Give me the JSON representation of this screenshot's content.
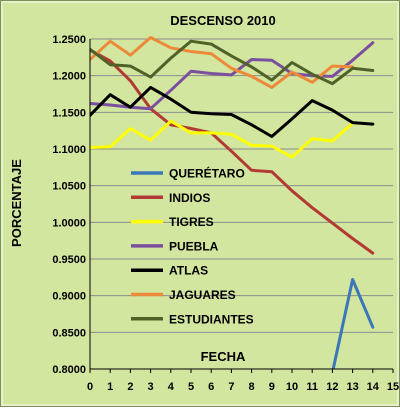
{
  "chart_data": {
    "type": "line",
    "title": "DESCENSO 2010",
    "xlabel": "FECHA",
    "ylabel": "PORCENTAJE",
    "xlim": [
      0,
      15
    ],
    "ylim": [
      0.8,
      1.25
    ],
    "x_ticks": [
      "0",
      "1",
      "2",
      "3",
      "4",
      "5",
      "6",
      "7",
      "8",
      "9",
      "10",
      "11",
      "12",
      "13",
      "14",
      "15"
    ],
    "y_ticks": [
      "0.8000",
      "0.8500",
      "0.9000",
      "0.9500",
      "1.0000",
      "1.0500",
      "1.1000",
      "1.1500",
      "1.2000",
      "1.2500"
    ],
    "grid": true,
    "legend_position": "center-left",
    "background": "#d2e6a0",
    "series": [
      {
        "name": "QUERÉTARO",
        "color": "#3b77b8",
        "x": [
          12,
          13,
          14
        ],
        "values": [
          0.795,
          0.922,
          0.857
        ]
      },
      {
        "name": "INDIOS",
        "color": "#b23a34",
        "x": [
          0,
          1,
          2,
          3,
          4,
          5,
          6,
          7,
          8,
          9,
          10,
          11,
          12,
          13,
          14
        ],
        "values": [
          1.235,
          1.22,
          1.193,
          1.155,
          1.133,
          1.128,
          1.122,
          1.097,
          1.071,
          1.069,
          1.043,
          1.02,
          0.999,
          0.978,
          0.958
        ]
      },
      {
        "name": "TIGRES",
        "color": "#ffff00",
        "x": [
          0,
          1,
          2,
          3,
          4,
          5,
          6,
          7,
          8,
          9,
          10,
          11,
          12,
          13
        ],
        "values": [
          1.102,
          1.103,
          1.128,
          1.112,
          1.138,
          1.122,
          1.122,
          1.12,
          1.105,
          1.104,
          1.089,
          1.114,
          1.111,
          1.135
        ]
      },
      {
        "name": "PUEBLA",
        "color": "#7b4f9e",
        "x": [
          0,
          1,
          2,
          3,
          4,
          5,
          6,
          7,
          8,
          9,
          10,
          11,
          12,
          13,
          14
        ],
        "values": [
          1.162,
          1.16,
          1.157,
          1.155,
          1.18,
          1.206,
          1.203,
          1.201,
          1.222,
          1.221,
          1.203,
          1.2,
          1.199,
          1.221,
          1.245
        ]
      },
      {
        "name": "ATLAS",
        "color": "#000000",
        "x": [
          0,
          1,
          2,
          3,
          4,
          5,
          6,
          7,
          8,
          9,
          10,
          11,
          12,
          13,
          14
        ],
        "values": [
          1.146,
          1.174,
          1.157,
          1.184,
          1.168,
          1.15,
          1.148,
          1.147,
          1.133,
          1.117,
          1.141,
          1.166,
          1.153,
          1.136,
          1.134
        ]
      },
      {
        "name": "JAGUARES",
        "color": "#ec8a3a",
        "x": [
          0,
          1,
          2,
          3,
          4,
          5,
          6,
          7,
          8,
          9,
          10,
          11,
          12,
          13
        ],
        "values": [
          1.222,
          1.247,
          1.228,
          1.252,
          1.238,
          1.233,
          1.23,
          1.21,
          1.199,
          1.184,
          1.205,
          1.191,
          1.213,
          1.212
        ]
      },
      {
        "name": "ESTUDIANTES",
        "color": "#4f6228",
        "x": [
          0,
          1,
          2,
          3,
          4,
          5,
          6,
          7,
          8,
          9,
          10,
          11,
          12,
          13,
          14
        ],
        "values": [
          1.236,
          1.215,
          1.213,
          1.198,
          1.224,
          1.247,
          1.243,
          1.227,
          1.212,
          1.194,
          1.218,
          1.202,
          1.189,
          1.21,
          1.207
        ]
      }
    ]
  }
}
